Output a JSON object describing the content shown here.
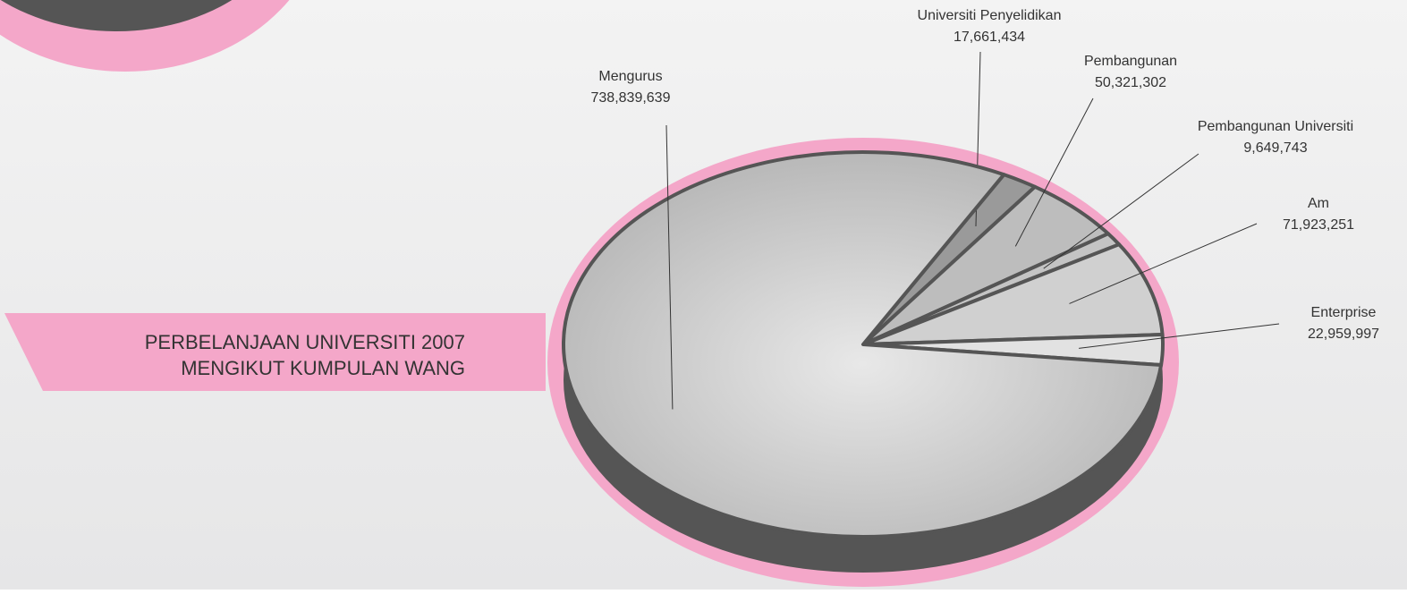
{
  "chart_data": {
    "type": "pie",
    "title": [
      "PERBELANJAAN UNIVERSITI 2007",
      "MENGIKUT KUMPULAN WANG"
    ],
    "categories": [
      "Universiti Penyelidikan",
      "Pembangunan",
      "Pembangunan Universiti",
      "Am",
      "Enterprise",
      "Mengurus"
    ],
    "values": [
      17661434,
      50321302,
      9649743,
      71923251,
      22959997,
      738839639
    ],
    "value_labels": [
      "17,661,434",
      "50,321,302",
      "9,649,743",
      "71,923,251",
      "22,959,997",
      "738,839,639"
    ],
    "colors": [
      "#9a9a9a",
      "#bdbdbd",
      "#c4c4c4",
      "#d0d0d0",
      "#e2e2e2",
      "#c6c6c6"
    ]
  }
}
